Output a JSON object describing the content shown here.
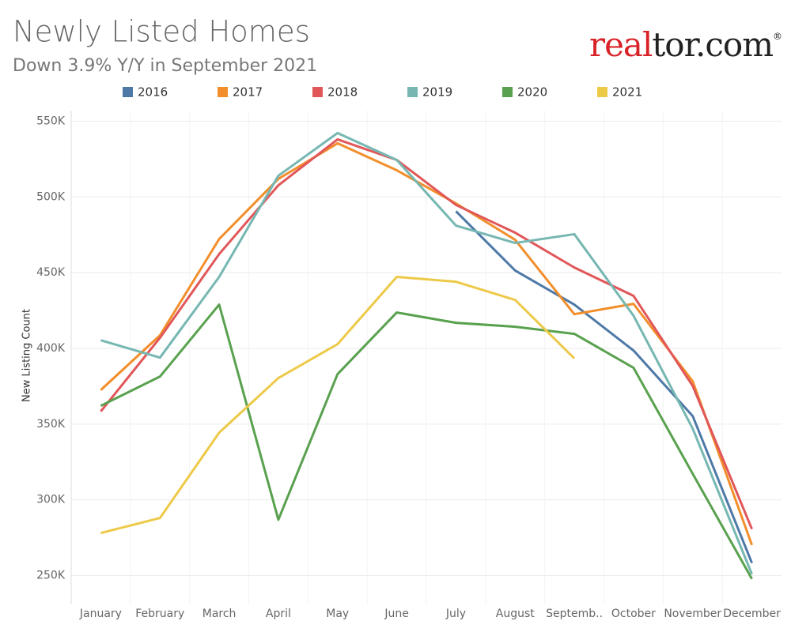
{
  "brand": {
    "logo": [
      "real",
      "tor.com",
      "®"
    ]
  },
  "chart_data": {
    "type": "line",
    "title": "Newly Listed Homes",
    "subtitle": "Down 3.9% Y/Y in September 2021",
    "y_label": "New Listing Count",
    "categories": [
      "January",
      "February",
      "March",
      "April",
      "May",
      "June",
      "July",
      "August",
      "Septemb..",
      "October",
      "November",
      "December"
    ],
    "series": [
      {
        "name": "2016",
        "color": "#4e79a7",
        "values": [
          null,
          null,
          null,
          null,
          null,
          null,
          490500,
          451400,
          428900,
          398600,
          355300,
          258300
        ]
      },
      {
        "name": "2017",
        "color": "#f28e2b",
        "values": [
          372500,
          408600,
          472200,
          511900,
          535400,
          517600,
          495700,
          471700,
          422600,
          429400,
          378300,
          270200
        ]
      },
      {
        "name": "2018",
        "color": "#e15759",
        "values": [
          358400,
          407000,
          462300,
          507700,
          538000,
          524400,
          494700,
          476400,
          453400,
          434700,
          375200,
          280700
        ]
      },
      {
        "name": "2019",
        "color": "#76b7b2",
        "values": [
          405400,
          393900,
          447200,
          514000,
          542200,
          524400,
          481100,
          469600,
          475400,
          421600,
          347000,
          250900
        ]
      },
      {
        "name": "2020",
        "color": "#59a14f",
        "values": [
          362100,
          381400,
          428900,
          286900,
          383000,
          423700,
          416900,
          414300,
          409600,
          387200,
          317200,
          247800
        ]
      },
      {
        "name": "2021",
        "color": "#edc948",
        "values": [
          278100,
          288000,
          344400,
          380400,
          402800,
          447200,
          444000,
          432000,
          393400,
          null,
          null,
          null
        ]
      }
    ],
    "ylim": [
      231000,
      557000
    ],
    "yticks": [
      {
        "value": 250000,
        "label": "250K"
      },
      {
        "value": 300000,
        "label": "300K"
      },
      {
        "value": 350000,
        "label": "350K"
      },
      {
        "value": 400000,
        "label": "400K"
      },
      {
        "value": 450000,
        "label": "450K"
      },
      {
        "value": 500000,
        "label": "500K"
      },
      {
        "value": 550000,
        "label": "550K"
      }
    ],
    "grid": true
  }
}
